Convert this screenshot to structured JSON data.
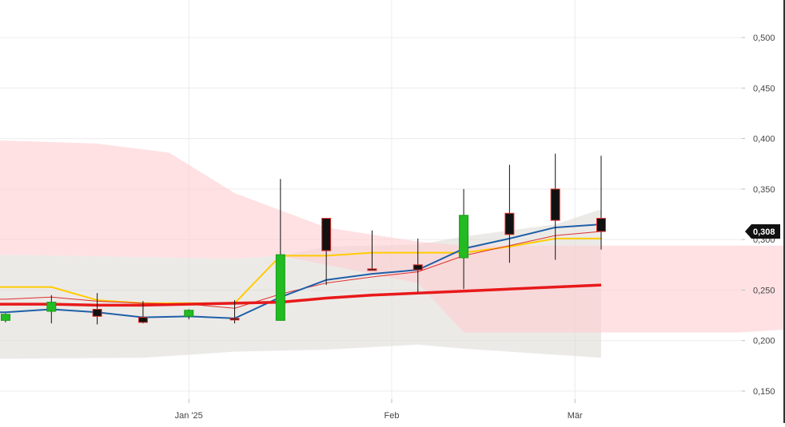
{
  "chart_data": {
    "type": "candlestick",
    "title": "",
    "xlabel": "",
    "ylabel": "",
    "ylim": [
      0.14,
      0.54
    ],
    "y_ticks": [
      {
        "value": 0.15,
        "label": "0,150"
      },
      {
        "value": 0.2,
        "label": "0,200"
      },
      {
        "value": 0.25,
        "label": "0,250"
      },
      {
        "value": 0.3,
        "label": "0,300"
      },
      {
        "value": 0.35,
        "label": "0,350"
      },
      {
        "value": 0.4,
        "label": "0,400"
      },
      {
        "value": 0.45,
        "label": "0,450"
      },
      {
        "value": 0.5,
        "label": "0,500"
      }
    ],
    "x_ticks": [
      {
        "date": "2025-01-01",
        "label": "Jan '25"
      },
      {
        "date": "2025-02-01",
        "label": "Feb"
      },
      {
        "date": "2025-03-01",
        "label": "Mär"
      }
    ],
    "x_range": [
      "2024-12-04",
      "2025-04-18"
    ],
    "last_price": {
      "value": 0.308,
      "label": "0,308"
    },
    "grid": true,
    "candles": [
      {
        "date": "2024-12-04",
        "open": 0.22,
        "high": 0.227,
        "low": 0.218,
        "close": 0.226
      },
      {
        "date": "2024-12-11",
        "open": 0.229,
        "high": 0.245,
        "low": 0.217,
        "close": 0.238
      },
      {
        "date": "2024-12-18",
        "open": 0.231,
        "high": 0.247,
        "low": 0.216,
        "close": 0.224
      },
      {
        "date": "2024-12-25",
        "open": 0.223,
        "high": 0.239,
        "low": 0.217,
        "close": 0.218
      },
      {
        "date": "2025-01-01",
        "open": 0.224,
        "high": 0.231,
        "low": 0.221,
        "close": 0.23
      },
      {
        "date": "2025-01-08",
        "open": 0.222,
        "high": 0.24,
        "low": 0.217,
        "close": 0.221
      },
      {
        "date": "2025-01-15",
        "open": 0.22,
        "high": 0.36,
        "low": 0.22,
        "close": 0.285
      },
      {
        "date": "2025-01-22",
        "open": 0.321,
        "high": 0.321,
        "low": 0.255,
        "close": 0.289
      },
      {
        "date": "2025-01-29",
        "open": 0.271,
        "high": 0.309,
        "low": 0.271,
        "close": 0.27
      },
      {
        "date": "2025-02-05",
        "open": 0.275,
        "high": 0.301,
        "low": 0.248,
        "close": 0.27
      },
      {
        "date": "2025-02-12",
        "open": 0.282,
        "high": 0.35,
        "low": 0.251,
        "close": 0.324
      },
      {
        "date": "2025-02-19",
        "open": 0.326,
        "high": 0.374,
        "low": 0.277,
        "close": 0.305
      },
      {
        "date": "2025-02-26",
        "open": 0.35,
        "high": 0.385,
        "low": 0.28,
        "close": 0.319
      },
      {
        "date": "2025-03-05",
        "open": 0.321,
        "high": 0.383,
        "low": 0.29,
        "close": 0.308
      }
    ],
    "series": [
      {
        "color": "#ffcc00",
        "width": 2,
        "points": [
          [
            "2024-12-04",
            0.253
          ],
          [
            "2024-12-11",
            0.253
          ],
          [
            "2024-12-18",
            0.24
          ],
          [
            "2024-12-25",
            0.237
          ],
          [
            "2025-01-01",
            0.237
          ],
          [
            "2025-01-08",
            0.237
          ],
          [
            "2025-01-15",
            0.284
          ],
          [
            "2025-01-22",
            0.284
          ],
          [
            "2025-01-29",
            0.287
          ],
          [
            "2025-02-05",
            0.287
          ],
          [
            "2025-02-12",
            0.287
          ],
          [
            "2025-02-19",
            0.293
          ],
          [
            "2025-02-26",
            0.301
          ],
          [
            "2025-03-05",
            0.301
          ]
        ]
      },
      {
        "color": "#e0302e",
        "width": 1,
        "points": [
          [
            "2024-12-04",
            0.241
          ],
          [
            "2024-12-11",
            0.243
          ],
          [
            "2024-12-18",
            0.239
          ],
          [
            "2024-12-25",
            0.237
          ],
          [
            "2025-01-01",
            0.236
          ],
          [
            "2025-01-08",
            0.232
          ],
          [
            "2025-01-15",
            0.246
          ],
          [
            "2025-01-22",
            0.257
          ],
          [
            "2025-01-29",
            0.263
          ],
          [
            "2025-02-05",
            0.268
          ],
          [
            "2025-02-12",
            0.284
          ],
          [
            "2025-02-19",
            0.294
          ],
          [
            "2025-02-26",
            0.304
          ],
          [
            "2025-03-05",
            0.308
          ]
        ]
      },
      {
        "color": "#1f5fa8",
        "width": 2,
        "points": [
          [
            "2024-12-04",
            0.228
          ],
          [
            "2024-12-11",
            0.231
          ],
          [
            "2024-12-18",
            0.228
          ],
          [
            "2024-12-25",
            0.223
          ],
          [
            "2025-01-01",
            0.224
          ],
          [
            "2025-01-08",
            0.222
          ],
          [
            "2025-01-15",
            0.243
          ],
          [
            "2025-01-22",
            0.26
          ],
          [
            "2025-01-29",
            0.266
          ],
          [
            "2025-02-05",
            0.27
          ],
          [
            "2025-02-12",
            0.291
          ],
          [
            "2025-02-19",
            0.301
          ],
          [
            "2025-02-26",
            0.312
          ],
          [
            "2025-03-05",
            0.315
          ]
        ]
      },
      {
        "color": "#e8191a",
        "width": 3.5,
        "points": [
          [
            "2024-12-04",
            0.236
          ],
          [
            "2024-12-11",
            0.236
          ],
          [
            "2024-12-18",
            0.235
          ],
          [
            "2024-12-25",
            0.235
          ],
          [
            "2025-01-01",
            0.236
          ],
          [
            "2025-01-08",
            0.237
          ],
          [
            "2025-01-15",
            0.238
          ],
          [
            "2025-01-22",
            0.242
          ],
          [
            "2025-01-29",
            0.245
          ],
          [
            "2025-02-05",
            0.247
          ],
          [
            "2025-02-12",
            0.249
          ],
          [
            "2025-02-19",
            0.251
          ],
          [
            "2025-02-26",
            0.253
          ],
          [
            "2025-03-05",
            0.255
          ]
        ]
      }
    ],
    "cloud": {
      "pink": {
        "color": "#ffcdd2",
        "upper": [
          [
            "2024-12-04",
            0.398
          ],
          [
            "2024-12-18",
            0.395
          ],
          [
            "2024-12-29",
            0.386
          ],
          [
            "2025-01-08",
            0.346
          ],
          [
            "2025-01-22",
            0.312
          ],
          [
            "2025-01-29",
            0.305
          ],
          [
            "2025-02-05",
            0.298
          ],
          [
            "2025-02-12",
            0.294
          ],
          [
            "2025-04-05",
            0.294
          ],
          [
            "2025-04-11",
            0.294
          ],
          [
            "2025-04-18",
            0.294
          ]
        ],
        "lower": [
          [
            "2024-12-04",
            0.285
          ],
          [
            "2025-01-08",
            0.281
          ],
          [
            "2025-01-15",
            0.284
          ],
          [
            "2025-02-05",
            0.257
          ],
          [
            "2025-02-12",
            0.208
          ],
          [
            "2025-03-05",
            0.208
          ],
          [
            "2025-03-26",
            0.208
          ],
          [
            "2025-04-05",
            0.212
          ],
          [
            "2025-04-11",
            0.24
          ],
          [
            "2025-04-18",
            0.24
          ]
        ]
      },
      "grey": {
        "color": "#dcd9d4",
        "upper": [
          [
            "2024-12-04",
            0.285
          ],
          [
            "2025-01-08",
            0.281
          ],
          [
            "2025-01-15",
            0.284
          ],
          [
            "2025-01-22",
            0.293
          ],
          [
            "2025-02-05",
            0.295
          ],
          [
            "2025-02-12",
            0.303
          ],
          [
            "2025-02-26",
            0.315
          ],
          [
            "2025-03-05",
            0.33
          ]
        ],
        "lower": [
          [
            "2024-12-04",
            0.182
          ],
          [
            "2024-12-25",
            0.183
          ],
          [
            "2025-01-08",
            0.189
          ],
          [
            "2025-01-22",
            0.191
          ],
          [
            "2025-02-05",
            0.196
          ],
          [
            "2025-02-12",
            0.192
          ],
          [
            "2025-03-05",
            0.183
          ]
        ]
      }
    }
  }
}
